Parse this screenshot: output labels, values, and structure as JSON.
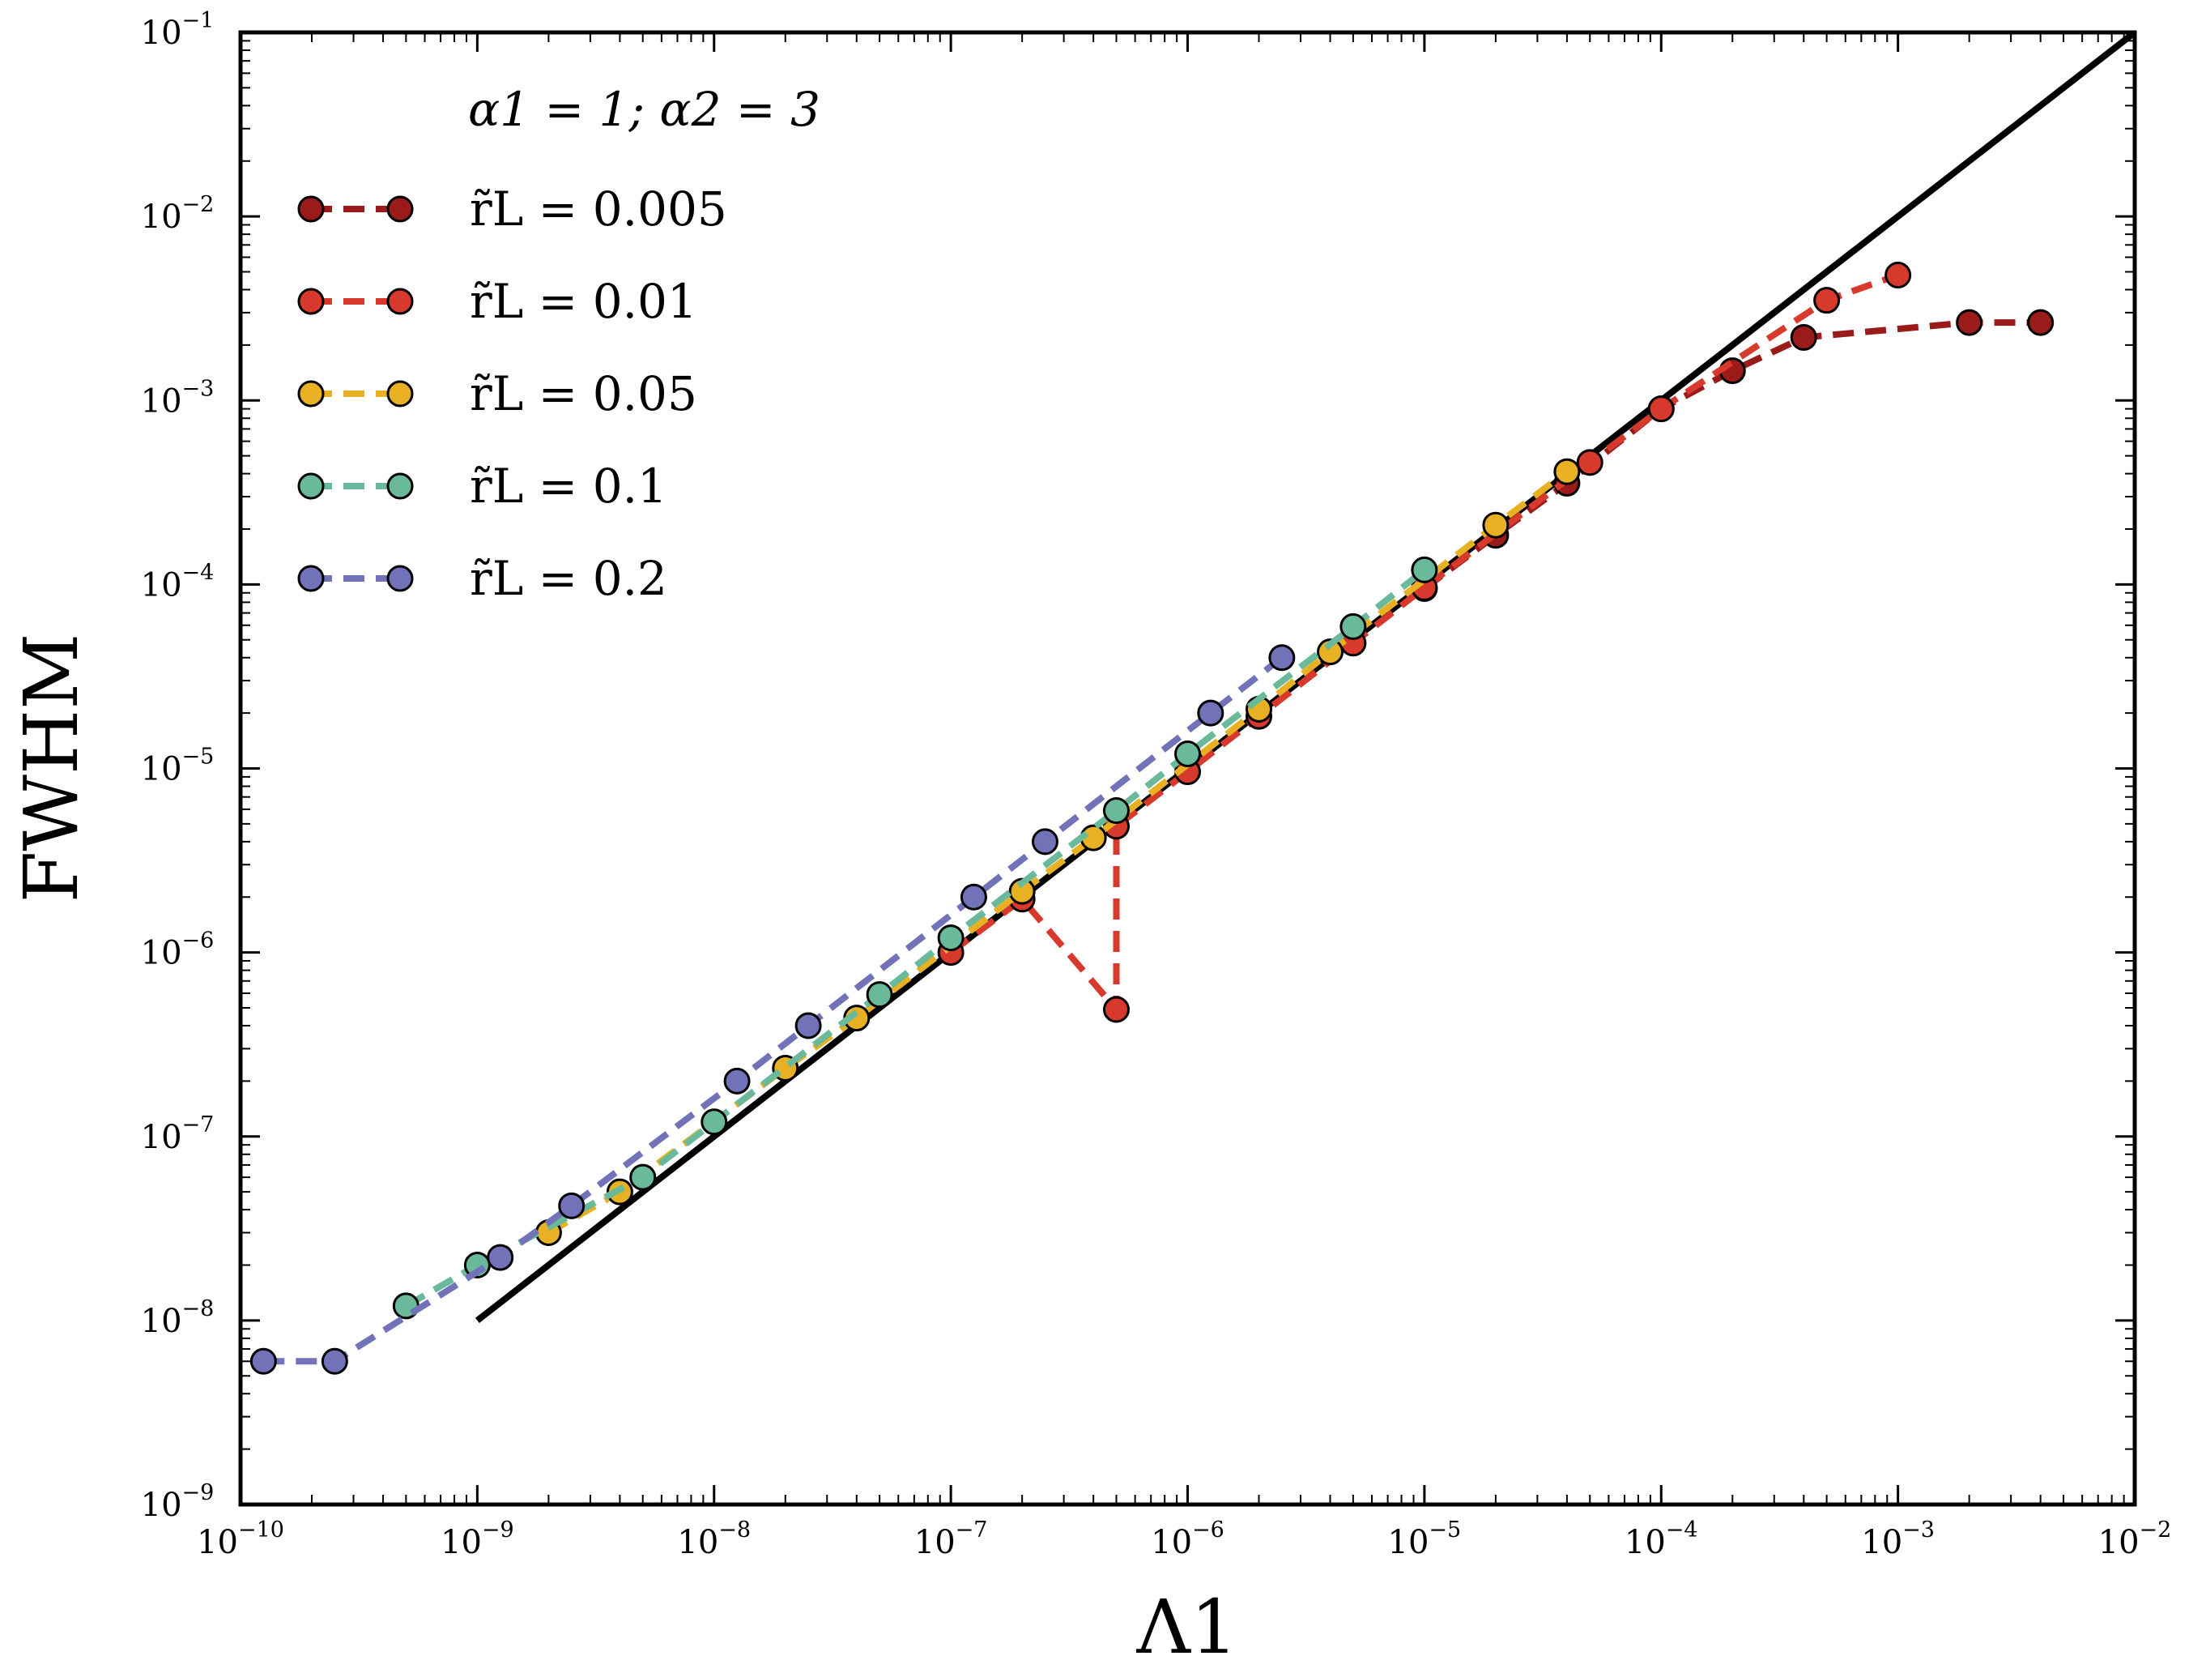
{
  "chart_data": {
    "type": "line",
    "xscale": "log",
    "yscale": "log",
    "xlim": [
      1e-10,
      0.01
    ],
    "ylim": [
      1e-09,
      0.1
    ],
    "xlabel": "Λ1",
    "ylabel": "FWHM",
    "legend_title": "α1 = 1; α2 = 3",
    "legend_position": "top-left",
    "x_ticks": [
      {
        "value": 1e-10,
        "base": "10",
        "exp": "−10"
      },
      {
        "value": 1e-09,
        "base": "10",
        "exp": "−9"
      },
      {
        "value": 1e-08,
        "base": "10",
        "exp": "−8"
      },
      {
        "value": 1e-07,
        "base": "10",
        "exp": "−7"
      },
      {
        "value": 1e-06,
        "base": "10",
        "exp": "−6"
      },
      {
        "value": 1e-05,
        "base": "10",
        "exp": "−5"
      },
      {
        "value": 0.0001,
        "base": "10",
        "exp": "−4"
      },
      {
        "value": 0.001,
        "base": "10",
        "exp": "−3"
      },
      {
        "value": 0.01,
        "base": "10",
        "exp": "−2"
      }
    ],
    "y_ticks": [
      {
        "value": 1e-09,
        "base": "10",
        "exp": "−9"
      },
      {
        "value": 1e-08,
        "base": "10",
        "exp": "−8"
      },
      {
        "value": 1e-07,
        "base": "10",
        "exp": "−7"
      },
      {
        "value": 1e-06,
        "base": "10",
        "exp": "−6"
      },
      {
        "value": 1e-05,
        "base": "10",
        "exp": "−5"
      },
      {
        "value": 0.0001,
        "base": "10",
        "exp": "−4"
      },
      {
        "value": 0.001,
        "base": "10",
        "exp": "−3"
      },
      {
        "value": 0.01,
        "base": "10",
        "exp": "−2"
      },
      {
        "value": 0.1,
        "base": "10",
        "exp": "−1"
      }
    ],
    "reference_line": {
      "name": "linear-fit",
      "color": "#000000",
      "x": [
        1e-09,
        0.01
      ],
      "y": [
        1e-08,
        0.1
      ]
    },
    "series": [
      {
        "name": "r̃L = 0.005",
        "label": "r̃L = 0.005",
        "color": "#9b1b1b",
        "x": [
          1e-05,
          2e-05,
          4e-05,
          0.0001,
          0.0002,
          0.0004,
          0.002,
          0.004
        ],
        "y": [
          9.5e-05,
          0.000185,
          0.000355,
          0.0009,
          0.00145,
          0.0022,
          0.00265,
          0.00265
        ]
      },
      {
        "name": "r̃L = 0.01",
        "label": "r̃L = 0.01",
        "color": "#d73a2d",
        "x": [
          5e-07,
          1e-07,
          2e-07,
          5e-07,
          1e-06,
          2e-06,
          5e-06,
          1e-05,
          5e-05,
          0.0001,
          0.0005,
          0.001
        ],
        "y": [
          4.9e-07,
          1e-06,
          1.95e-06,
          4.85e-06,
          9.6e-06,
          1.92e-05,
          4.8e-05,
          9.6e-05,
          0.00046,
          0.0009,
          0.0035,
          0.0048
        ]
      },
      {
        "name": "r̃L = 0.05",
        "label": "r̃L = 0.05",
        "color": "#e8b023",
        "x": [
          2e-09,
          4e-09,
          2e-08,
          4e-08,
          2e-07,
          4e-07,
          2e-06,
          4e-06,
          2e-05,
          4e-05
        ],
        "y": [
          3e-08,
          5e-08,
          2.35e-07,
          4.4e-07,
          2.15e-06,
          4.2e-06,
          2.1e-05,
          4.3e-05,
          0.00021,
          0.00041
        ]
      },
      {
        "name": "r̃L = 0.1",
        "label": "r̃L = 0.1",
        "color": "#6ab99a",
        "x": [
          5e-10,
          1e-09,
          5e-09,
          1e-08,
          5e-08,
          1e-07,
          5e-07,
          1e-06,
          5e-06,
          1e-05
        ],
        "y": [
          1.2e-08,
          2e-08,
          6e-08,
          1.2e-07,
          5.9e-07,
          1.2e-06,
          5.9e-06,
          1.2e-05,
          5.9e-05,
          0.00012
        ]
      },
      {
        "name": "r̃L = 0.2",
        "label": "r̃L = 0.2",
        "color": "#7272b8",
        "x": [
          1.25e-10,
          2.5e-10,
          1.25e-09,
          2.5e-09,
          1.25e-08,
          2.5e-08,
          1.25e-07,
          2.5e-07,
          1.25e-06,
          2.5e-06
        ],
        "y": [
          6e-09,
          6e-09,
          2.2e-08,
          4.2e-08,
          2e-07,
          4e-07,
          2e-06,
          4e-06,
          2e-05,
          4e-05
        ]
      }
    ]
  }
}
